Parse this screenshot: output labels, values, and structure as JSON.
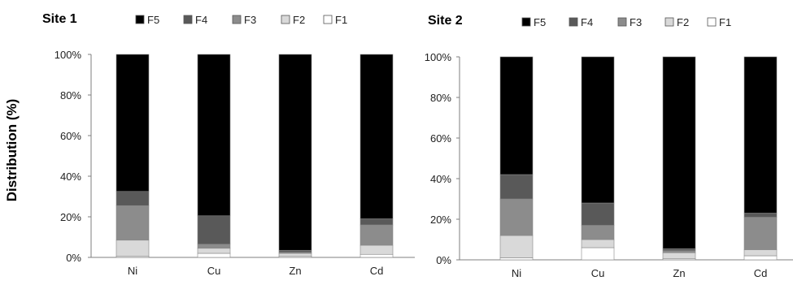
{
  "figure": {
    "ylabel": "Distribution (%)"
  },
  "chart_data": [
    {
      "type": "bar",
      "stacked": true,
      "title": "Site 1",
      "categories": [
        "Ni",
        "Cu",
        "Zn",
        "Cd"
      ],
      "ylim": [
        0,
        100
      ],
      "yticks": [
        "0%",
        "20%",
        "40%",
        "60%",
        "80%",
        "100%"
      ],
      "legend": [
        "F5",
        "F4",
        "F3",
        "F2",
        "F1"
      ],
      "legend_position": "top",
      "series": [
        {
          "name": "F1",
          "color": "#ffffff",
          "values": [
            0.5,
            2,
            0.5,
            1.5
          ]
        },
        {
          "name": "F2",
          "color": "#d9d9d9",
          "values": [
            8,
            2.5,
            1.5,
            4.5
          ]
        },
        {
          "name": "F3",
          "color": "#8c8c8c",
          "values": [
            17,
            2,
            0.5,
            10
          ]
        },
        {
          "name": "F4",
          "color": "#595959",
          "values": [
            7,
            14,
            1,
            3
          ]
        },
        {
          "name": "F5",
          "color": "#000000",
          "values": [
            67.5,
            79.5,
            96.5,
            81
          ]
        }
      ]
    },
    {
      "type": "bar",
      "stacked": true,
      "title": "Site 2",
      "categories": [
        "Ni",
        "Cu",
        "Zn",
        "Cd"
      ],
      "ylim": [
        0,
        100
      ],
      "yticks": [
        "0%",
        "20%",
        "40%",
        "60%",
        "80%",
        "100%"
      ],
      "legend": [
        "F5",
        "F4",
        "F3",
        "F2",
        "F1"
      ],
      "legend_position": "top",
      "series": [
        {
          "name": "F1",
          "color": "#ffffff",
          "values": [
            1,
            6,
            0.5,
            2
          ]
        },
        {
          "name": "F2",
          "color": "#d9d9d9",
          "values": [
            11,
            4,
            3,
            3
          ]
        },
        {
          "name": "F3",
          "color": "#8c8c8c",
          "values": [
            18,
            7,
            1,
            16
          ]
        },
        {
          "name": "F4",
          "color": "#595959",
          "values": [
            12,
            11,
            1,
            2
          ]
        },
        {
          "name": "F5",
          "color": "#000000",
          "values": [
            58,
            72,
            94.5,
            77
          ]
        }
      ]
    }
  ]
}
